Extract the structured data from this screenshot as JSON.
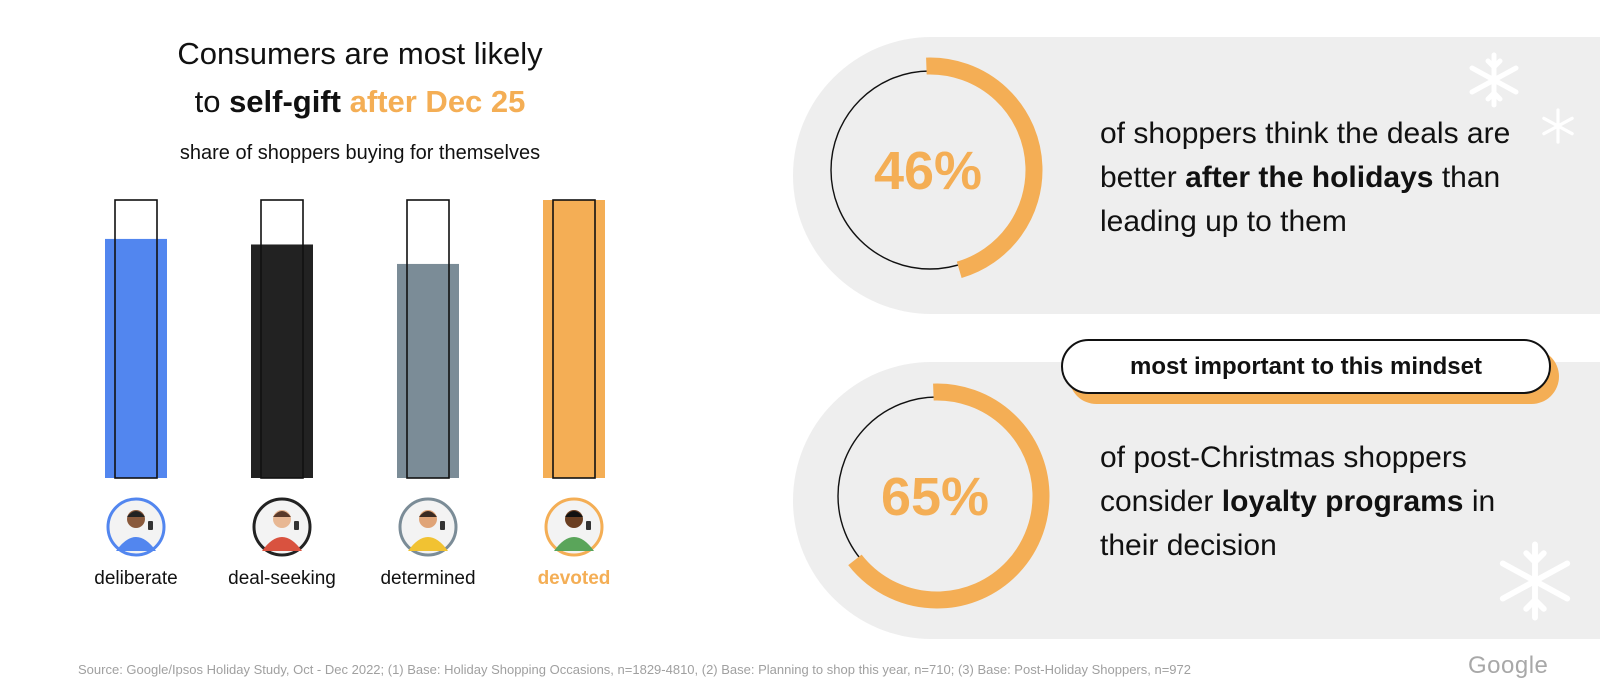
{
  "header": {
    "title_line1": "Consumers are most likely",
    "title_to": "to",
    "title_bold": "self-gift",
    "title_accent": "after Dec 25",
    "subtitle": "share of shoppers buying for themselves"
  },
  "colors": {
    "accent": "#f4ae55",
    "panel_bg": "#eeeeee",
    "deliberate": "#5286ef",
    "deal_seeking": "#222222",
    "determined": "#7b8c97",
    "devoted": "#f4ae55"
  },
  "chart_data": {
    "type": "bar",
    "title": "share of shoppers buying for themselves",
    "categories": [
      "deliberate",
      "deal-seeking",
      "determined",
      "devoted"
    ],
    "values": [
      0.86,
      0.84,
      0.77,
      1.0
    ],
    "ylim": [
      0,
      1
    ],
    "colors": [
      "#5286ef",
      "#222222",
      "#7b8c97",
      "#f4ae55"
    ],
    "highlight": "devoted",
    "grid": false,
    "axes_visible": false
  },
  "stats": [
    {
      "value": "46%",
      "fraction": 0.46,
      "text_pre": "of shoppers think the deals are better",
      "text_bold": "after the holidays",
      "text_post": "than leading up to them"
    },
    {
      "value": "65%",
      "fraction": 0.65,
      "text_pre": "of post-Christmas shoppers consider",
      "text_bold": "loyalty programs",
      "text_post": "in their decision"
    }
  ],
  "callout": "most important to this mindset",
  "icons": [
    "snowflake-icon",
    "persona-avatar-icon"
  ],
  "footer": {
    "source": "Source: Google/Ipsos Holiday Study, Oct - Dec 2022; (1) Base: Holiday Shopping Occasions, n=1829-4810, (2) Base: Planning to shop this year, n=710; (3) Base: Post-Holiday Shoppers, n=972",
    "logo": "Google"
  }
}
